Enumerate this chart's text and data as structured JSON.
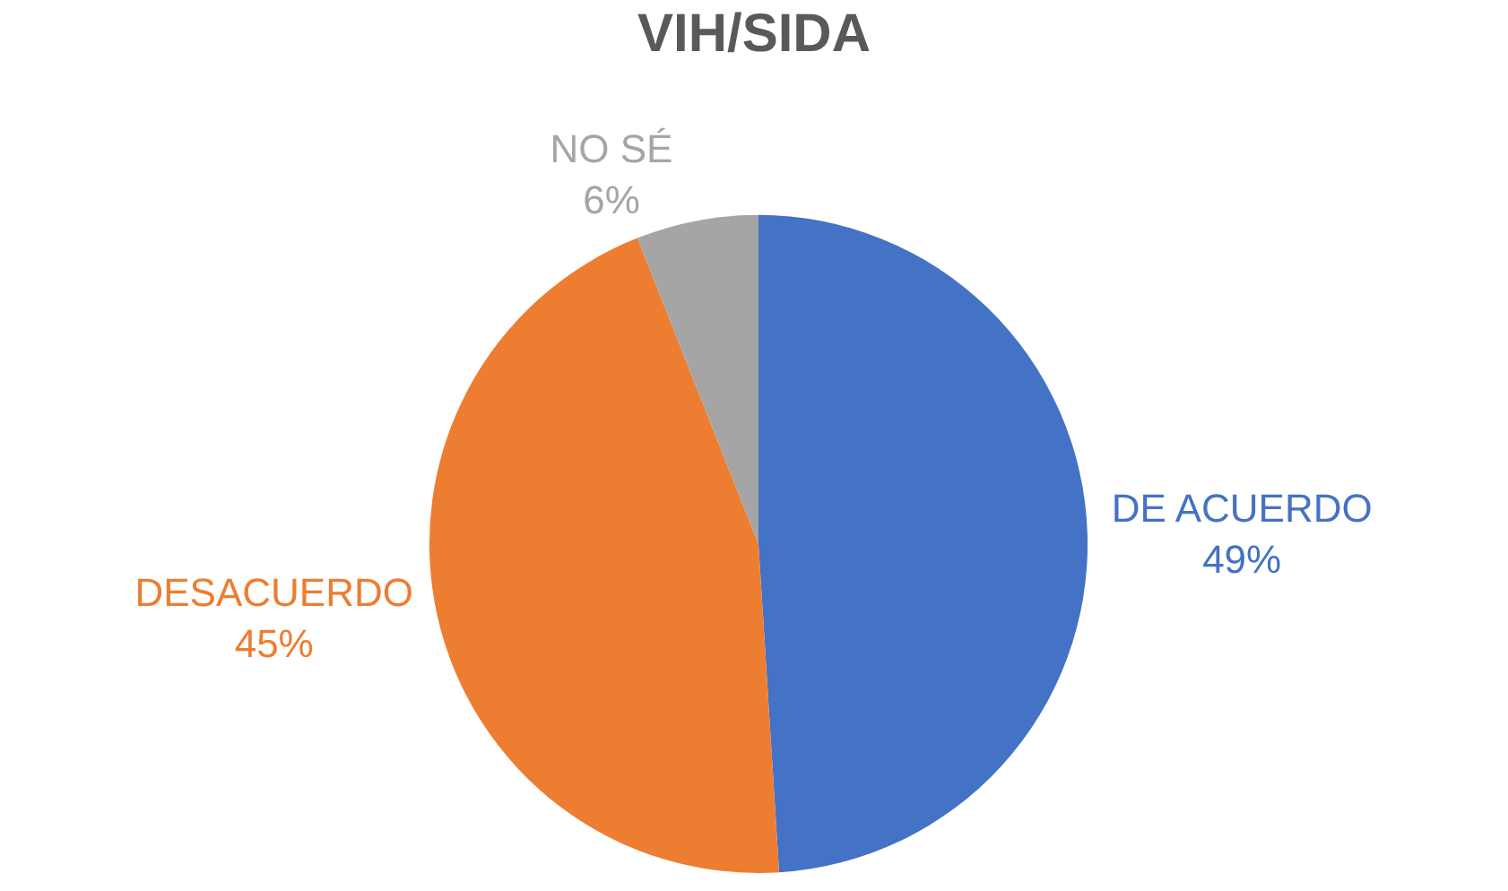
{
  "chart_data": {
    "type": "pie",
    "title": "VIH/SIDA",
    "categories": [
      "DE ACUERDO",
      "DESACUERDO",
      "NO SÉ"
    ],
    "values": [
      49,
      45,
      6
    ],
    "value_labels": [
      "49%",
      "45%",
      "6%"
    ],
    "colors": [
      "#4472c4",
      "#ed7d31",
      "#a5a5a5"
    ],
    "legend": false
  }
}
